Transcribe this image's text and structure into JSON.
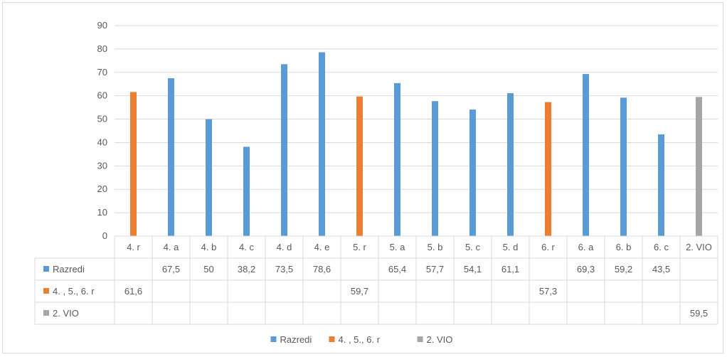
{
  "chart_data": {
    "type": "bar",
    "title": "",
    "xlabel": "",
    "ylabel": "",
    "ylim": [
      0,
      90
    ],
    "yticks": [
      0,
      10,
      20,
      30,
      40,
      50,
      60,
      70,
      80,
      90
    ],
    "grid": true,
    "legend_placement": "bottom",
    "categories": [
      "4. r",
      "4. a",
      "4. b",
      "4. c",
      "4. d",
      "4. e",
      "5. r",
      "5. a",
      "5. b",
      "5. c",
      "5. d",
      "6. r",
      "6. a",
      "6. b",
      "6. c",
      "2. VIO"
    ],
    "series": [
      {
        "name": "Razredi",
        "color": "#5b9bd5",
        "values": [
          null,
          67.5,
          50,
          38.2,
          73.5,
          78.6,
          null,
          65.4,
          57.7,
          54.1,
          61.1,
          null,
          69.3,
          59.2,
          43.5,
          null
        ],
        "labels": [
          "",
          "67,5",
          "50",
          "38,2",
          "73,5",
          "78,6",
          "",
          "65,4",
          "57,7",
          "54,1",
          "61,1",
          "",
          "69,3",
          "59,2",
          "43,5",
          ""
        ]
      },
      {
        "name": "4. , 5., 6. r",
        "color": "#ed7d31",
        "values": [
          61.6,
          null,
          null,
          null,
          null,
          null,
          59.7,
          null,
          null,
          null,
          null,
          57.3,
          null,
          null,
          null,
          null
        ],
        "labels": [
          "61,6",
          "",
          "",
          "",
          "",
          "",
          "59,7",
          "",
          "",
          "",
          "",
          "57,3",
          "",
          "",
          "",
          ""
        ]
      },
      {
        "name": "2. VIO",
        "color": "#a5a5a5",
        "values": [
          null,
          null,
          null,
          null,
          null,
          null,
          null,
          null,
          null,
          null,
          null,
          null,
          null,
          null,
          null,
          59.5
        ],
        "labels": [
          "",
          "",
          "",
          "",
          "",
          "",
          "",
          "",
          "",
          "",
          "",
          "",
          "",
          "",
          "",
          "59,5"
        ]
      }
    ]
  }
}
